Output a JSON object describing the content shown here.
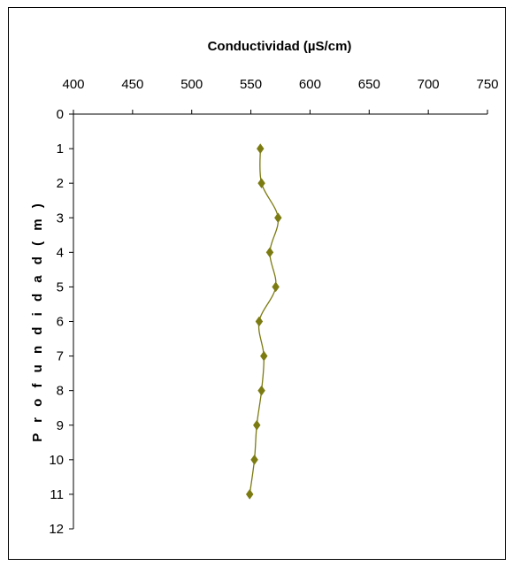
{
  "chart_data": {
    "type": "line",
    "title": "Conductividad (µS/cm)",
    "xlabel": "",
    "ylabel": "P r o f u n d i d a d  ( m )",
    "xlim": [
      400,
      750
    ],
    "ylim": [
      0,
      12
    ],
    "x_ticks": [
      400,
      450,
      500,
      550,
      600,
      650,
      700,
      750
    ],
    "y_ticks": [
      0,
      1,
      2,
      3,
      4,
      5,
      6,
      7,
      8,
      9,
      10,
      11,
      12
    ],
    "x_axis_position": "top",
    "y_axis_inverted": true,
    "grid": false,
    "series": [
      {
        "color": "#7b7b12",
        "marker": "diamond",
        "depth": [
          1,
          2,
          3,
          4,
          5,
          6,
          7,
          8,
          9,
          10,
          11
        ],
        "conductivity": [
          558,
          559,
          573,
          566,
          571,
          557,
          561,
          559,
          555,
          553,
          549
        ]
      }
    ]
  }
}
